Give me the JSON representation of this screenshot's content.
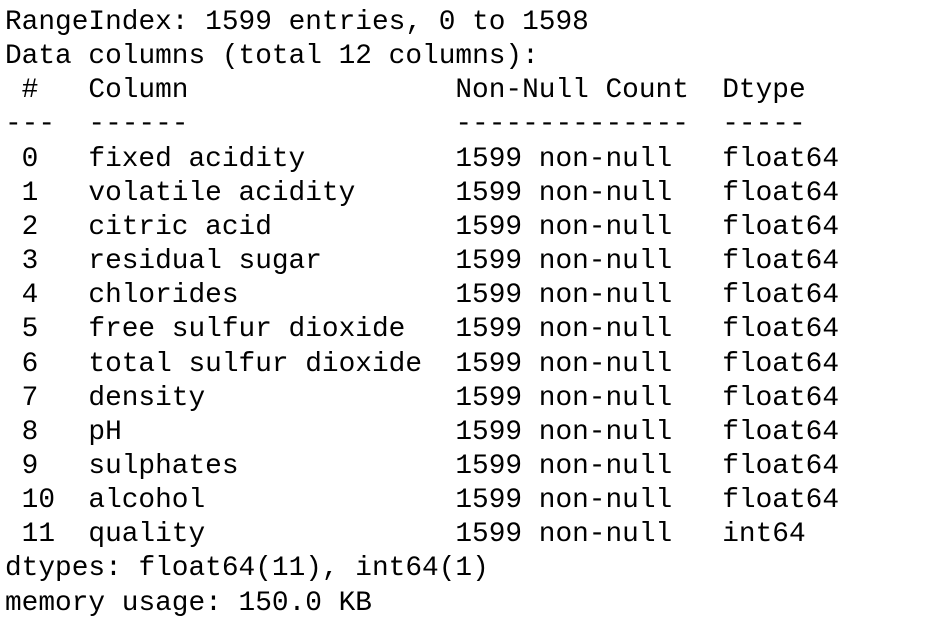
{
  "header": {
    "lines": [
      "RangeIndex: 1599 entries, 0 to 1598",
      "Data columns (total 12 columns):"
    ]
  },
  "table": {
    "columns": [
      "#",
      "Column",
      "Non-Null Count",
      "Dtype"
    ],
    "separators": [
      "---",
      "------",
      "--------------",
      "-----"
    ],
    "rows": [
      [
        "0",
        "fixed acidity",
        "1599 non-null",
        "float64"
      ],
      [
        "1",
        "volatile acidity",
        "1599 non-null",
        "float64"
      ],
      [
        "2",
        "citric acid",
        "1599 non-null",
        "float64"
      ],
      [
        "3",
        "residual sugar",
        "1599 non-null",
        "float64"
      ],
      [
        "4",
        "chlorides",
        "1599 non-null",
        "float64"
      ],
      [
        "5",
        "free sulfur dioxide",
        "1599 non-null",
        "float64"
      ],
      [
        "6",
        "total sulfur dioxide",
        "1599 non-null",
        "float64"
      ],
      [
        "7",
        "density",
        "1599 non-null",
        "float64"
      ],
      [
        "8",
        "pH",
        "1599 non-null",
        "float64"
      ],
      [
        "9",
        "sulphates",
        "1599 non-null",
        "float64"
      ],
      [
        "10",
        "alcohol",
        "1599 non-null",
        "float64"
      ],
      [
        "11",
        "quality",
        "1599 non-null",
        "int64"
      ]
    ]
  },
  "footer": {
    "lines": [
      "dtypes: float64(11), int64(1)",
      "memory usage: 150.0 KB"
    ]
  }
}
